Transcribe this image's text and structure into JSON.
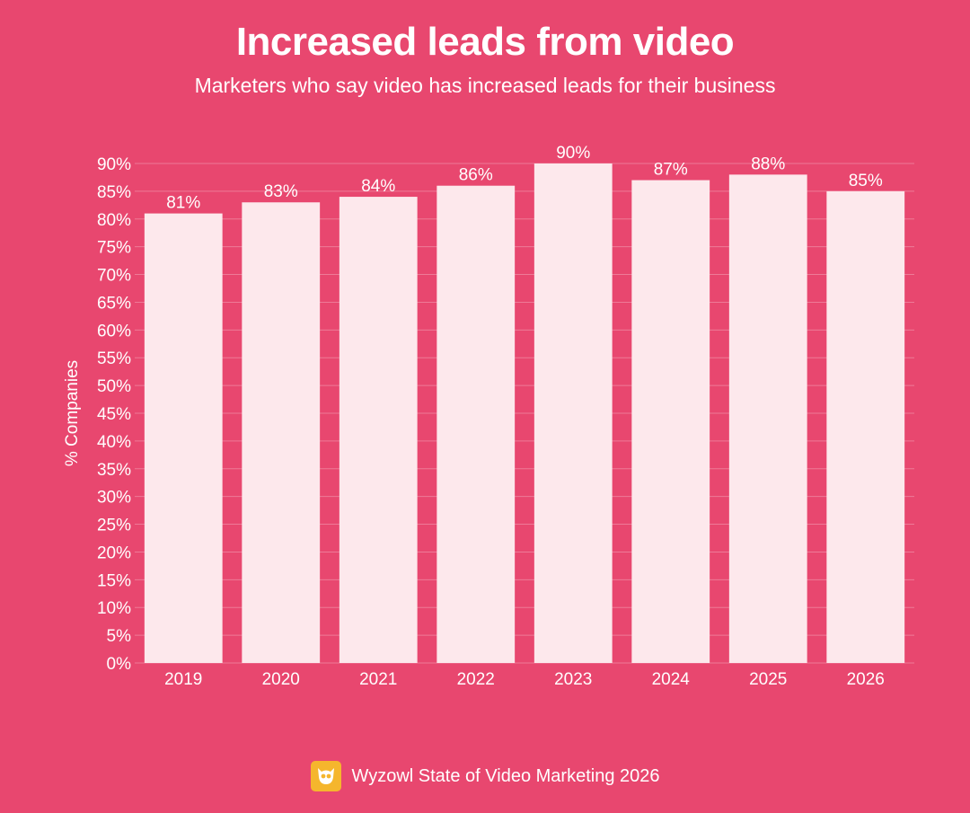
{
  "header": {
    "title": "Increased leads from video",
    "subtitle": "Marketers who say video has increased leads for their business"
  },
  "footer": {
    "source": "Wyzowl State of Video Marketing 2026",
    "logo_icon": "wyzowl-owl-logo-icon"
  },
  "colors": {
    "background": "#e8476f",
    "bar": "#fde8ec",
    "text": "#ffffff",
    "logo": "#f5b62d"
  },
  "chart_data": {
    "type": "bar",
    "title": "Increased leads from video",
    "subtitle": "Marketers who say video has increased leads for their business",
    "xlabel": "",
    "ylabel": "% Companies",
    "categories": [
      "2019",
      "2020",
      "2021",
      "2022",
      "2023",
      "2024",
      "2025",
      "2026"
    ],
    "values": [
      81,
      83,
      84,
      86,
      90,
      87,
      88,
      85
    ],
    "data_labels": [
      "81%",
      "83%",
      "84%",
      "86%",
      "90%",
      "87%",
      "88%",
      "85%"
    ],
    "ylim": [
      0,
      90
    ],
    "yticks": [
      "0%",
      "5%",
      "10%",
      "15%",
      "20%",
      "25%",
      "30%",
      "35%",
      "40%",
      "45%",
      "50%",
      "55%",
      "60%",
      "65%",
      "70%",
      "75%",
      "80%",
      "85%",
      "90%"
    ],
    "grid": true,
    "legend": "none"
  }
}
